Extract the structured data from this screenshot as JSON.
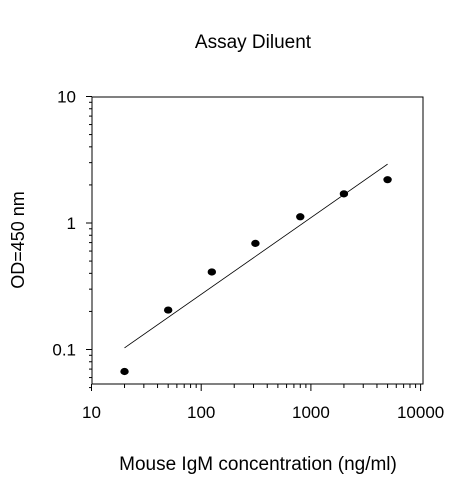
{
  "chart_data": {
    "type": "scatter",
    "title": "Assay Diluent",
    "xlabel": "Mouse IgM concentration (ng/ml)",
    "ylabel": "OD=450 nm",
    "xscale": "log",
    "yscale": "log",
    "xlim": [
      10,
      10000
    ],
    "ylim": [
      0.04,
      10
    ],
    "xticks": [
      10,
      100,
      1000,
      10000
    ],
    "xtick_labels": [
      "10",
      "100",
      "1000",
      "10000"
    ],
    "yticks": [
      0.1,
      1,
      10
    ],
    "ytick_labels": [
      "0.1",
      "1",
      "10"
    ],
    "grid": false,
    "legend": "none",
    "series": [
      {
        "x": [
          20,
          50,
          125,
          312,
          800,
          2000,
          5000
        ],
        "y": [
          0.067,
          0.205,
          0.41,
          0.69,
          1.12,
          1.7,
          2.2
        ]
      }
    ],
    "fit_line": {
      "x": [
        20,
        5000
      ],
      "y": [
        0.103,
        2.92
      ]
    },
    "colors": {
      "marker": "#000000",
      "line": "#000000",
      "axis": "#000000"
    }
  }
}
